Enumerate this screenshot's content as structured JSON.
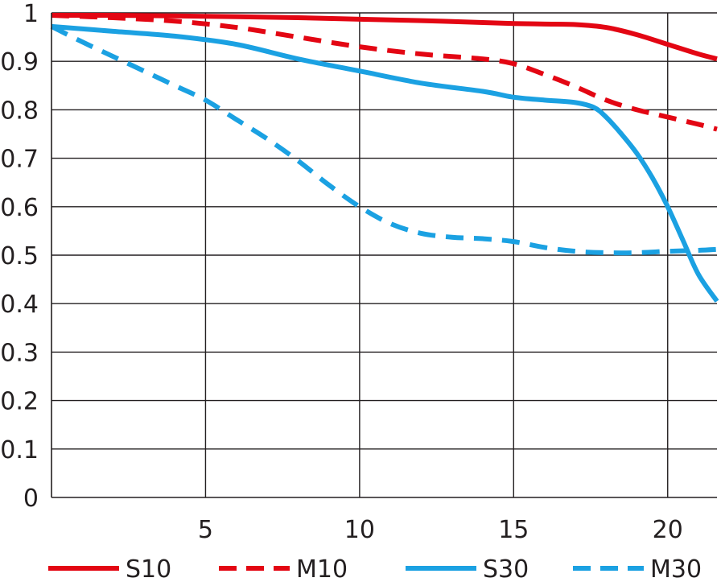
{
  "chart_data": {
    "type": "line",
    "title": "",
    "xlabel": "",
    "ylabel": "",
    "xlim": [
      0,
      21.6
    ],
    "ylim": [
      0,
      1
    ],
    "x_ticks": [
      {
        "value": 5,
        "label": "5"
      },
      {
        "value": 10,
        "label": "10"
      },
      {
        "value": 15,
        "label": "15"
      },
      {
        "value": 20,
        "label": "20"
      }
    ],
    "y_ticks": [
      {
        "value": 0,
        "label": "0"
      },
      {
        "value": 0.1,
        "label": "0.1"
      },
      {
        "value": 0.2,
        "label": "0.2"
      },
      {
        "value": 0.3,
        "label": "0.3"
      },
      {
        "value": 0.4,
        "label": "0.4"
      },
      {
        "value": 0.5,
        "label": "0.5"
      },
      {
        "value": 0.6,
        "label": "0.6"
      },
      {
        "value": 0.7,
        "label": "0.7"
      },
      {
        "value": 0.8,
        "label": "0.8"
      },
      {
        "value": 0.9,
        "label": "0.9"
      },
      {
        "value": 1,
        "label": "1"
      }
    ],
    "grid": true,
    "legend_position": "bottom",
    "series": [
      {
        "name": "S10",
        "color": "#e30613",
        "dash": "solid",
        "x": [
          0,
          2,
          5,
          8,
          10,
          12,
          14,
          15,
          16,
          17,
          18,
          19,
          20,
          21,
          21.6
        ],
        "y": [
          0.995,
          0.995,
          0.993,
          0.99,
          0.987,
          0.984,
          0.98,
          0.978,
          0.977,
          0.976,
          0.97,
          0.955,
          0.935,
          0.915,
          0.905
        ]
      },
      {
        "name": "M10",
        "color": "#e30613",
        "dash": "dashed",
        "x": [
          0,
          2,
          4,
          6,
          8,
          10,
          12,
          14,
          15,
          16,
          17,
          18,
          19,
          20,
          21,
          21.6
        ],
        "y": [
          0.995,
          0.99,
          0.983,
          0.97,
          0.95,
          0.93,
          0.915,
          0.905,
          0.895,
          0.873,
          0.848,
          0.82,
          0.8,
          0.785,
          0.77,
          0.76
        ]
      },
      {
        "name": "S30",
        "color": "#1ba1e2",
        "dash": "solid",
        "x": [
          0,
          2,
          4,
          6,
          8,
          10,
          12,
          14,
          15,
          16,
          17,
          17.6,
          18,
          18.5,
          19,
          19.5,
          20,
          20.5,
          21,
          21.6
        ],
        "y": [
          0.972,
          0.962,
          0.952,
          0.935,
          0.905,
          0.88,
          0.855,
          0.838,
          0.826,
          0.82,
          0.815,
          0.805,
          0.785,
          0.75,
          0.71,
          0.66,
          0.6,
          0.53,
          0.46,
          0.405
        ]
      },
      {
        "name": "M30",
        "color": "#1ba1e2",
        "dash": "dashed",
        "x": [
          0,
          1,
          2,
          3,
          4,
          5,
          6,
          7,
          8,
          9,
          10,
          11,
          12,
          13,
          14,
          15,
          16,
          17,
          18,
          19,
          20,
          21,
          21.6
        ],
        "y": [
          0.972,
          0.94,
          0.91,
          0.88,
          0.85,
          0.82,
          0.78,
          0.74,
          0.695,
          0.645,
          0.6,
          0.565,
          0.545,
          0.537,
          0.534,
          0.528,
          0.516,
          0.508,
          0.505,
          0.505,
          0.508,
          0.51,
          0.512
        ]
      }
    ]
  }
}
